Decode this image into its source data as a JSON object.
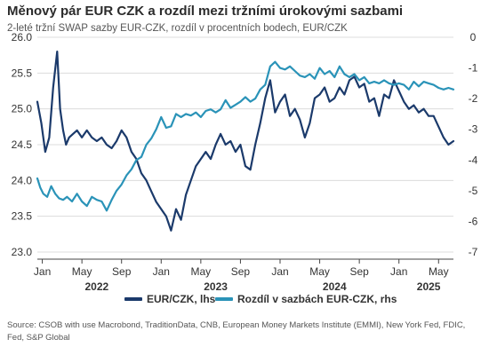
{
  "header": {
    "title": "Měnový pár EUR CZK a rozdíl mezi tržními úrokovými sazbami",
    "subtitle": "2-leté tržní SWAP sazby EUR-CZK, rozdíl v procentních bodech, EUR/CZK"
  },
  "colors": {
    "eurczk": "#1b3a6b",
    "diff": "#2a93b8",
    "grid": "#dcdcdc",
    "axis": "#444444"
  },
  "chart_data": {
    "type": "line",
    "left_axis": {
      "min": 23.0,
      "max": 26.0,
      "ticks": [
        "23.0",
        "23.5",
        "24.0",
        "24.5",
        "25.0",
        "25.5",
        "26.0"
      ],
      "tick_values": [
        23.0,
        23.5,
        24.0,
        24.5,
        25.0,
        25.5,
        26.0
      ]
    },
    "right_axis": {
      "min": -7,
      "max": 0,
      "ticks": [
        "-7",
        "-6",
        "-5",
        "-4",
        "-3",
        "-2",
        "-1",
        "0"
      ],
      "tick_values": [
        -7,
        -6,
        -5,
        -4,
        -3,
        -2,
        -1,
        0
      ]
    },
    "x_range": [
      0,
      42
    ],
    "month_ticks": [
      {
        "x": 0.5,
        "label": "Jan"
      },
      {
        "x": 4.5,
        "label": "May"
      },
      {
        "x": 8.5,
        "label": "Sep"
      },
      {
        "x": 12.5,
        "label": "Jan"
      },
      {
        "x": 16.5,
        "label": "May"
      },
      {
        "x": 20.5,
        "label": "Sep"
      },
      {
        "x": 24.5,
        "label": "Jan"
      },
      {
        "x": 28.5,
        "label": "May"
      },
      {
        "x": 32.5,
        "label": "Sep"
      },
      {
        "x": 36.5,
        "label": "Jan"
      },
      {
        "x": 40.5,
        "label": "May"
      }
    ],
    "year_ticks": [
      {
        "x": 6,
        "label": "2022"
      },
      {
        "x": 18,
        "label": "2023"
      },
      {
        "x": 30,
        "label": "2024"
      },
      {
        "x": 39.5,
        "label": "2025"
      }
    ],
    "series": [
      {
        "name": "EUR/CZK, lhs",
        "axis": "left",
        "x": [
          0.0,
          0.4,
          0.8,
          1.2,
          1.6,
          2.0,
          2.3,
          2.6,
          2.9,
          3.2,
          3.6,
          4.0,
          4.5,
          5.0,
          5.5,
          6.0,
          6.5,
          7.0,
          7.5,
          8.0,
          8.5,
          9.0,
          9.5,
          10.0,
          10.5,
          11.0,
          11.5,
          12.0,
          12.5,
          13.0,
          13.5,
          14.0,
          14.5,
          15.0,
          15.5,
          16.0,
          16.5,
          17.0,
          17.5,
          18.0,
          18.5,
          19.0,
          19.5,
          20.0,
          20.5,
          21.0,
          21.5,
          22.0,
          22.5,
          23.0,
          23.5,
          24.0,
          24.5,
          25.0,
          25.5,
          26.0,
          26.5,
          27.0,
          27.5,
          28.0,
          28.5,
          29.0,
          29.5,
          30.0,
          30.5,
          31.0,
          31.5,
          32.0,
          32.5,
          33.0,
          33.5,
          34.0,
          34.5,
          35.0,
          35.5,
          36.0,
          36.5,
          37.0,
          37.5,
          38.0,
          38.5,
          39.0,
          39.5,
          40.0,
          40.5,
          41.0,
          41.5,
          42.0
        ],
        "values": [
          25.1,
          24.8,
          24.4,
          24.6,
          25.3,
          25.8,
          25.0,
          24.7,
          24.5,
          24.6,
          24.65,
          24.7,
          24.6,
          24.7,
          24.6,
          24.55,
          24.6,
          24.5,
          24.45,
          24.55,
          24.7,
          24.6,
          24.4,
          24.3,
          24.1,
          24.0,
          23.85,
          23.7,
          23.6,
          23.5,
          23.3,
          23.6,
          23.45,
          23.8,
          24.0,
          24.2,
          24.3,
          24.4,
          24.3,
          24.5,
          24.65,
          24.5,
          24.55,
          24.4,
          24.5,
          24.2,
          24.15,
          24.5,
          24.8,
          25.15,
          25.4,
          24.95,
          25.1,
          25.2,
          24.9,
          25.0,
          24.85,
          24.6,
          24.8,
          25.15,
          25.2,
          25.3,
          25.1,
          25.15,
          25.3,
          25.2,
          25.4,
          25.45,
          25.3,
          25.35,
          25.1,
          25.15,
          24.9,
          25.2,
          25.15,
          25.4,
          25.25,
          25.1,
          25.0,
          25.05,
          24.95,
          25.0,
          24.9,
          24.9,
          24.75,
          24.6,
          24.5,
          24.55
        ]
      },
      {
        "name": "Rozdíl v sazbách EUR-CZK, rhs",
        "axis": "right",
        "x": [
          0.0,
          0.3,
          0.6,
          1.0,
          1.4,
          1.8,
          2.2,
          2.6,
          3.0,
          3.5,
          4.0,
          4.5,
          5.0,
          5.5,
          6.0,
          6.5,
          7.0,
          7.5,
          8.0,
          8.5,
          9.0,
          9.5,
          10.0,
          10.5,
          11.0,
          11.5,
          12.0,
          12.5,
          13.0,
          13.5,
          14.0,
          14.5,
          15.0,
          15.5,
          16.0,
          16.5,
          17.0,
          17.5,
          18.0,
          18.5,
          19.0,
          19.5,
          20.0,
          20.5,
          21.0,
          21.5,
          22.0,
          22.5,
          23.0,
          23.5,
          24.0,
          24.5,
          25.0,
          25.5,
          26.0,
          26.5,
          27.0,
          27.5,
          28.0,
          28.5,
          29.0,
          29.5,
          30.0,
          30.5,
          31.0,
          31.5,
          32.0,
          32.5,
          33.0,
          33.5,
          34.0,
          34.5,
          35.0,
          35.5,
          36.0,
          36.5,
          37.0,
          37.5,
          38.0,
          38.5,
          39.0,
          39.5,
          40.0,
          40.5,
          41.0,
          41.5,
          42.0
        ],
        "values": [
          -4.6,
          -4.9,
          -5.1,
          -5.2,
          -4.85,
          -5.1,
          -5.25,
          -5.3,
          -5.2,
          -5.35,
          -5.1,
          -5.35,
          -5.5,
          -5.2,
          -5.3,
          -5.35,
          -5.65,
          -5.3,
          -5.0,
          -4.8,
          -4.5,
          -4.3,
          -4.0,
          -3.9,
          -3.5,
          -3.3,
          -3.0,
          -2.6,
          -2.95,
          -2.9,
          -2.5,
          -2.6,
          -2.5,
          -2.55,
          -2.45,
          -2.6,
          -2.4,
          -2.35,
          -2.45,
          -2.35,
          -2.05,
          -2.3,
          -2.2,
          -2.1,
          -1.95,
          -2.1,
          -2.0,
          -1.7,
          -1.55,
          -0.95,
          -0.8,
          -1.0,
          -1.05,
          -0.95,
          -1.1,
          -1.25,
          -1.3,
          -1.2,
          -1.35,
          -1.0,
          -1.2,
          -1.1,
          -1.3,
          -0.95,
          -1.2,
          -1.3,
          -1.2,
          -1.4,
          -1.3,
          -1.5,
          -1.45,
          -1.5,
          -1.4,
          -1.5,
          -1.55,
          -1.5,
          -1.55,
          -1.7,
          -1.45,
          -1.6,
          -1.45,
          -1.5,
          -1.55,
          -1.65,
          -1.7,
          -1.65,
          -1.7
        ]
      }
    ]
  },
  "legend": {
    "item1": "EUR/CZK, lhs",
    "item2": "Rozdíl v sazbách EUR-CZK, rhs"
  },
  "source": "Source: CSOB with use Macrobond, TraditionData, CNB, European Money Markets Institute (EMMI), New York Fed, FDIC, Fed, S&P Global"
}
